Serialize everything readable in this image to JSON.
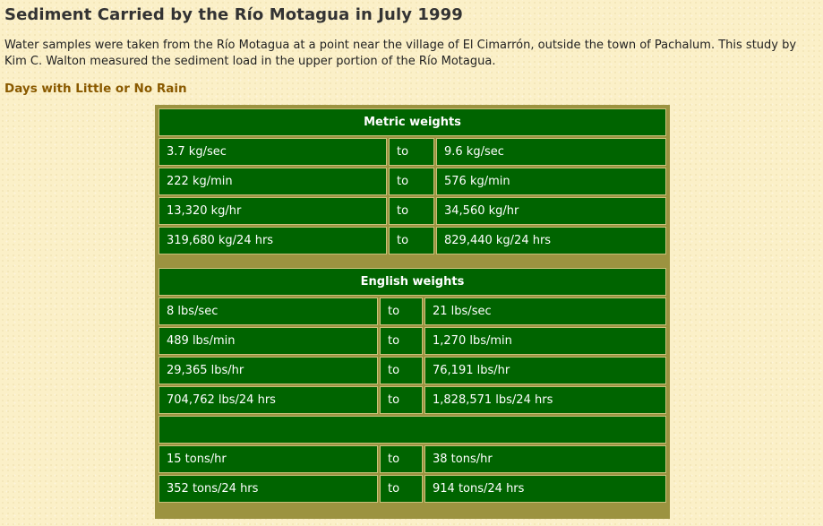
{
  "title": "Sediment Carried by the Río Motagua in July 1999",
  "intro": "Water samples were taken from the Río Motagua at a point near the village of El Cimarrón, outside the town of Pachalum. This study by Kim C. Walton measured the sediment load in the upper portion of the Río Motagua.",
  "subheading": "Days with Little or No Rain",
  "metric": {
    "header": "Metric weights",
    "rows": [
      {
        "from": "3.7 kg/sec",
        "to": "to",
        "end": "9.6 kg/sec"
      },
      {
        "from": "222 kg/min",
        "to": "to",
        "end": "576 kg/min"
      },
      {
        "from": "13,320 kg/hr",
        "to": "to",
        "end": "34,560 kg/hr"
      },
      {
        "from": "319,680 kg/24 hrs",
        "to": "to",
        "end": "829,440 kg/24 hrs"
      }
    ]
  },
  "english": {
    "header": "English weights",
    "rows": [
      {
        "from": "8 lbs/sec",
        "to": "to",
        "end": "21 lbs/sec"
      },
      {
        "from": "489 lbs/min",
        "to": "to",
        "end": "1,270 lbs/min"
      },
      {
        "from": "29,365 lbs/hr",
        "to": "to",
        "end": "76,191 lbs/hr"
      },
      {
        "from": "704,762 lbs/24 hrs",
        "to": "to",
        "end": "1,828,571 lbs/24 hrs"
      }
    ],
    "spacer": "",
    "tons_rows": [
      {
        "from": "15 tons/hr",
        "to": "to",
        "end": "38 tons/hr"
      },
      {
        "from": "352 tons/24 hrs",
        "to": "to",
        "end": "914 tons/24 hrs"
      }
    ]
  }
}
